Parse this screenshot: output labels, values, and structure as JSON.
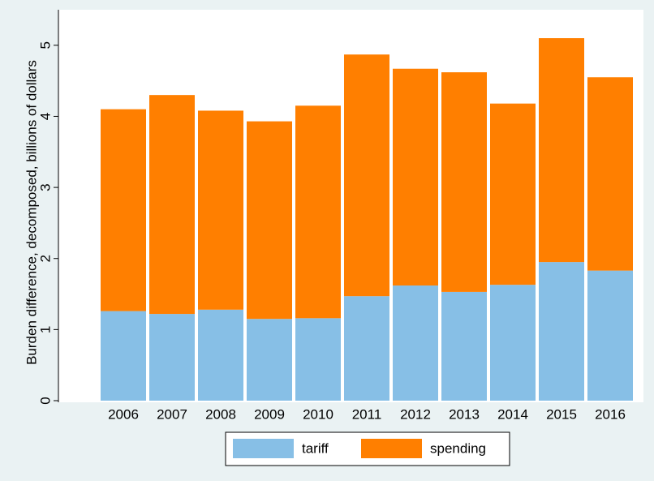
{
  "chart_data": {
    "type": "stacked_bar",
    "y_label": "Burden difference, decomposed, billions of dollars",
    "categories": [
      "2006",
      "2007",
      "2008",
      "2009",
      "2010",
      "2011",
      "2012",
      "2013",
      "2014",
      "2015",
      "2016"
    ],
    "series": [
      {
        "name": "tariff",
        "color": "#87bfe6",
        "values": [
          1.26,
          1.22,
          1.28,
          1.15,
          1.16,
          1.47,
          1.62,
          1.53,
          1.63,
          1.95,
          1.83
        ]
      },
      {
        "name": "spending",
        "color": "#ff7f00",
        "values": [
          2.84,
          3.08,
          2.8,
          2.78,
          2.99,
          3.4,
          3.05,
          3.09,
          2.55,
          3.15,
          2.72
        ]
      }
    ],
    "ylim": [
      0,
      5.5
    ],
    "yticks": [
      0,
      1,
      2,
      3,
      4,
      5
    ],
    "grid": false,
    "legend": "bottom"
  }
}
